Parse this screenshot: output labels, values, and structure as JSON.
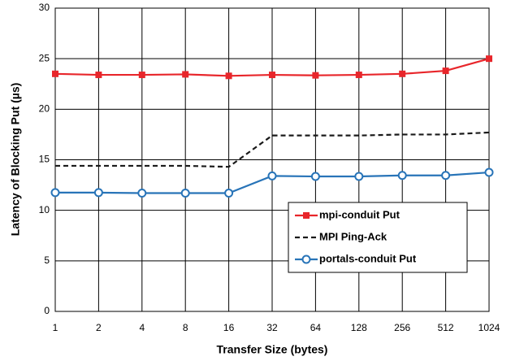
{
  "chart_data": {
    "type": "line",
    "xlabel": "Transfer Size (bytes)",
    "ylabel": "Latency of Blocking Put (µs)",
    "categories": [
      "1",
      "2",
      "4",
      "8",
      "16",
      "32",
      "64",
      "128",
      "256",
      "512",
      "1024"
    ],
    "series": [
      {
        "name": "mpi-conduit Put",
        "color": "#e8262b",
        "marker": "square",
        "linestyle": "solid",
        "values": [
          23.5,
          23.4,
          23.4,
          23.45,
          23.3,
          23.4,
          23.35,
          23.4,
          23.5,
          23.8,
          25.0
        ]
      },
      {
        "name": "MPI Ping-Ack",
        "color": "#1a1a1a",
        "marker": null,
        "linestyle": "dashed",
        "values": [
          14.4,
          14.4,
          14.4,
          14.4,
          14.3,
          17.4,
          17.4,
          17.4,
          17.5,
          17.5,
          17.7
        ]
      },
      {
        "name": "portals-conduit Put",
        "color": "#2874b8",
        "marker": "circle",
        "linestyle": "solid",
        "values": [
          11.75,
          11.75,
          11.7,
          11.7,
          11.7,
          13.4,
          13.35,
          13.35,
          13.45,
          13.45,
          13.75
        ]
      }
    ],
    "ylim": [
      0,
      30
    ],
    "yticks": [
      0,
      5,
      10,
      15,
      20,
      25,
      30
    ],
    "grid": true,
    "legend": "lower right"
  }
}
